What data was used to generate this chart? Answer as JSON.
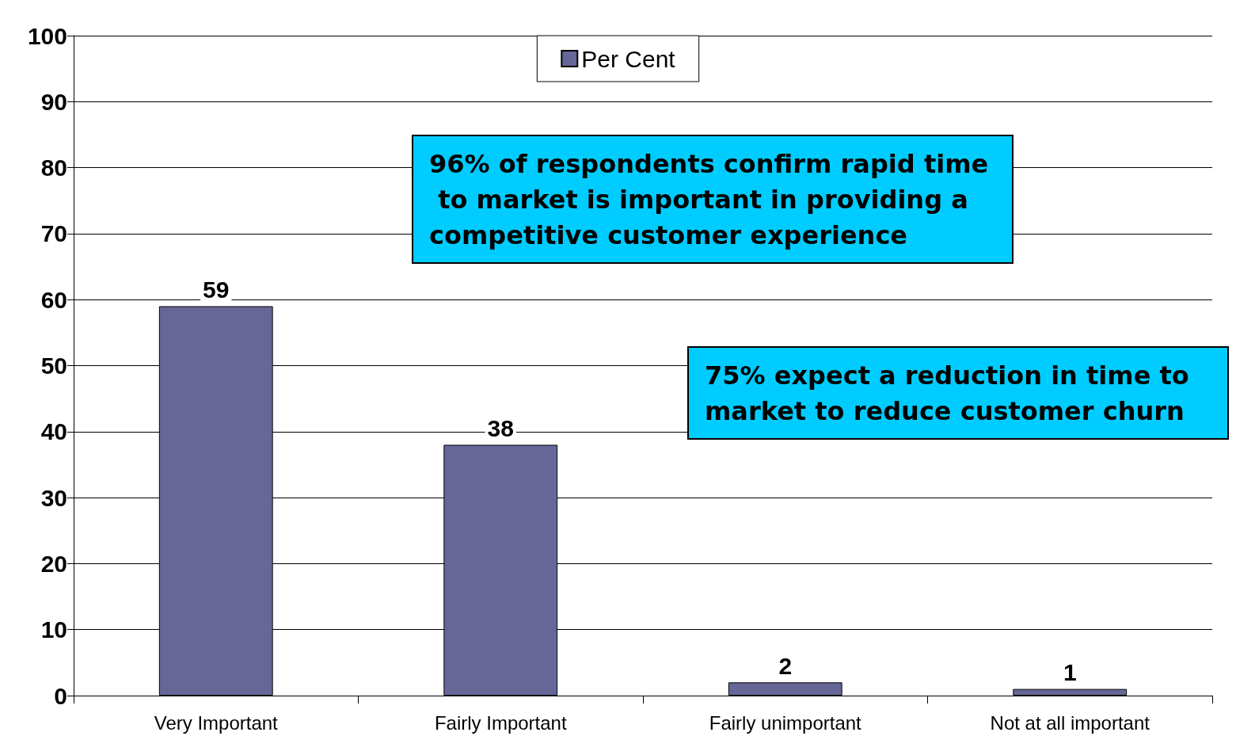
{
  "chart_data": {
    "type": "bar",
    "categories": [
      "Very Important",
      "Fairly Important",
      "Fairly unimportant",
      "Not at all important"
    ],
    "series": [
      {
        "name": "Per Cent",
        "color": "#666699",
        "values": [
          59,
          38,
          2,
          1
        ]
      }
    ],
    "ylim": [
      0,
      100
    ],
    "yticks": [
      0,
      10,
      20,
      30,
      40,
      50,
      60,
      70,
      80,
      90,
      100
    ],
    "grid": "y",
    "legend": "top",
    "data_labels": true,
    "annotations": [
      "96% of respondents confirm rapid time to market is important in providing a competitive customer experience",
      "75% expect a reduction in time to market to reduce customer churn"
    ]
  }
}
